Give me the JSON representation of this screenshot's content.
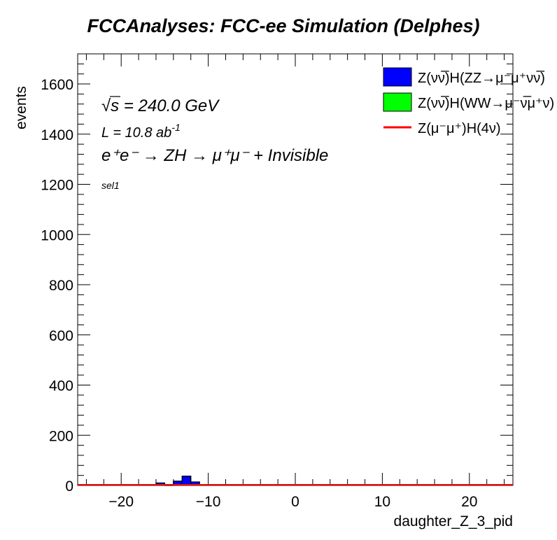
{
  "chart_data": {
    "type": "bar",
    "title": "FCCAnalyses: FCC-ee Simulation (Delphes)",
    "xlabel": "daughter_Z_3_pid",
    "ylabel": "events",
    "xlim": [
      -25,
      25
    ],
    "ylim": [
      0,
      1720
    ],
    "x_ticks": [
      -20,
      -10,
      0,
      10,
      20
    ],
    "x_tick_labels": [
      "−20",
      "−10",
      "0",
      "10",
      "20"
    ],
    "y_ticks": [
      0,
      200,
      400,
      600,
      800,
      1000,
      1200,
      1400,
      1600
    ],
    "y_tick_labels": [
      "0",
      "200",
      "400",
      "600",
      "800",
      "1000",
      "1200",
      "1400",
      "1600"
    ],
    "grid": false,
    "legend_position": "top-right",
    "bin_edges": [
      -16,
      -15,
      -14,
      -13,
      -12,
      -11
    ],
    "series": [
      {
        "name": "Z(νν̅)H(ZZ→μ⁻μ⁺νν̅)",
        "kind": "stacked-fill",
        "color": "#0000ff",
        "values": [
          10,
          0,
          17,
          37,
          14
        ]
      },
      {
        "name": "Z(νν̅)H(WW→μ⁻ν̅μ⁺ν)",
        "kind": "stacked-fill",
        "color": "#00ff00",
        "values": [
          0,
          0,
          0,
          0,
          0
        ]
      },
      {
        "name": "Z(μ⁻μ⁺)H(4ν)",
        "kind": "line",
        "color": "#ff0000",
        "values": [
          0,
          0,
          0,
          0,
          0
        ]
      }
    ],
    "annotations": [
      {
        "id": "sqrt_s",
        "root": "√",
        "var": "s",
        "rest": " = 240.0 GeV"
      },
      {
        "id": "lumi",
        "text": "L = 10.8 ab",
        "sup": "-1"
      },
      {
        "id": "process",
        "text": "e⁺e⁻ → ZH → μ⁺μ⁻ + Invisible"
      },
      {
        "id": "selection",
        "text": "sel1"
      }
    ]
  },
  "legend": {
    "zz": "Z(νν̅)H(ZZ→μ⁻μ⁺νν̅)",
    "ww": "Z(νν̅)H(WW→μ⁻ν̅μ⁺ν)",
    "sig": "Z(μ⁻μ⁺)H(4ν)"
  }
}
